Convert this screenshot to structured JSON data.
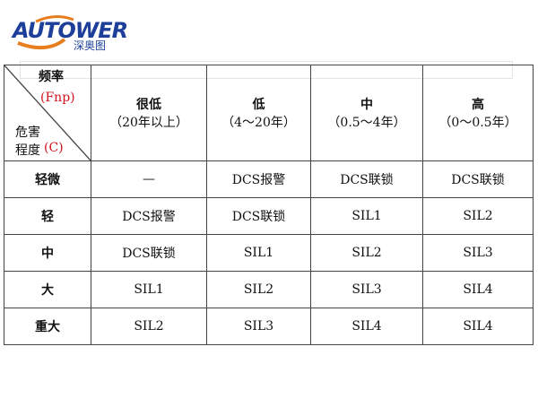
{
  "logo": {
    "brand": "AUTOWER",
    "chinese": "深奥图",
    "colors": {
      "blue": "#1d3f9a",
      "orange": "#e87d1e"
    }
  },
  "corner": {
    "top": "频率",
    "top_unit": "(Fnp)",
    "bottom_line1": "危害",
    "bottom_line2": "程度",
    "bottom_unit": "(C)"
  },
  "columns": [
    {
      "label": "很低",
      "range": "（20年以上）"
    },
    {
      "label": "低",
      "range": "（4～20年）"
    },
    {
      "label": "中",
      "range": "（0.5～4年）"
    },
    {
      "label": "高",
      "range": "（0～0.5年）"
    }
  ],
  "rows": [
    {
      "label": "轻微",
      "cells": [
        "—",
        "DCS报警",
        "DCS联锁",
        "DCS联锁"
      ]
    },
    {
      "label": "轻",
      "cells": [
        "DCS报警",
        "DCS联锁",
        "SIL1",
        "SIL2"
      ]
    },
    {
      "label": "中",
      "cells": [
        "DCS联锁",
        "SIL1",
        "SIL2",
        "SIL3"
      ]
    },
    {
      "label": "大",
      "cells": [
        "SIL1",
        "SIL2",
        "SIL3",
        "SIL4"
      ]
    },
    {
      "label": "重大",
      "cells": [
        "SIL2",
        "SIL3",
        "SIL4",
        "SIL4"
      ]
    }
  ]
}
